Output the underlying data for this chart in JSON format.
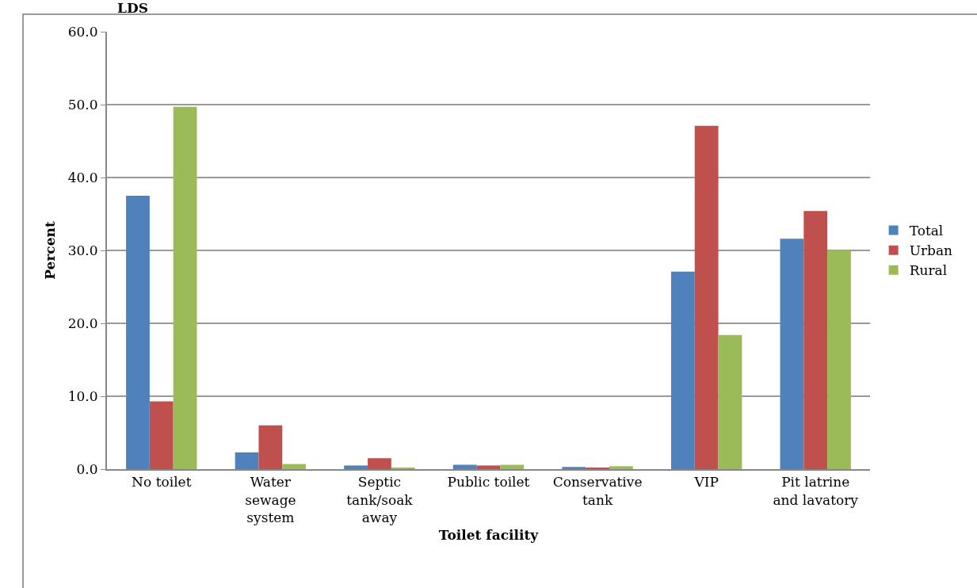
{
  "chart_data": {
    "type": "bar",
    "title": "LDS",
    "xlabel": "Toilet facility",
    "ylabel": "Percent",
    "categories": [
      "No toilet",
      "Water\nsewage\nsystem",
      "Septic\ntank/soak\naway",
      "Public toilet",
      "Conservative\ntank",
      "VIP",
      "Pit latrine\nand lavatory"
    ],
    "series": [
      {
        "name": "Total",
        "color": "#4f81bd",
        "values": [
          37.5,
          2.3,
          0.5,
          0.6,
          0.3,
          27.1,
          31.6
        ]
      },
      {
        "name": "Urban",
        "color": "#c0504d",
        "values": [
          9.3,
          6.0,
          1.5,
          0.5,
          0.2,
          47.1,
          35.4
        ]
      },
      {
        "name": "Rural",
        "color": "#9bbb59",
        "values": [
          49.7,
          0.7,
          0.2,
          0.6,
          0.4,
          18.4,
          30.0
        ]
      }
    ],
    "ylim": [
      0,
      60
    ],
    "yticks": [
      {
        "value": 0,
        "label": "0.0"
      },
      {
        "value": 10,
        "label": "10.0"
      },
      {
        "value": 20,
        "label": "20.0"
      },
      {
        "value": 30,
        "label": "30.0"
      },
      {
        "value": 40,
        "label": "40.0"
      },
      {
        "value": 50,
        "label": "50.0"
      },
      {
        "value": 60,
        "label": "60.0"
      }
    ],
    "grid": "y",
    "legend": "right"
  }
}
